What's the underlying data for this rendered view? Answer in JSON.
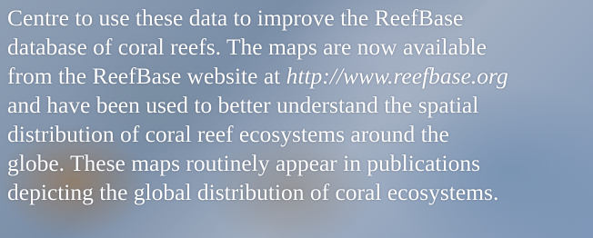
{
  "paragraph": {
    "lines": [
      "Centre to use these data to improve the ReefBase",
      "database of coral reefs. The maps are now available",
      {
        "text": "from the ReefBase website at",
        "url": "http://www.reefbase.org"
      },
      "and have been used to better understand the spatial",
      "distribution of coral reef ecosystems around the",
      "globe. These maps routinely appear in publications",
      "depicting the global distribution of coral ecosystems."
    ],
    "first_line": "Centre to use these data to improve the ReefBase"
  }
}
